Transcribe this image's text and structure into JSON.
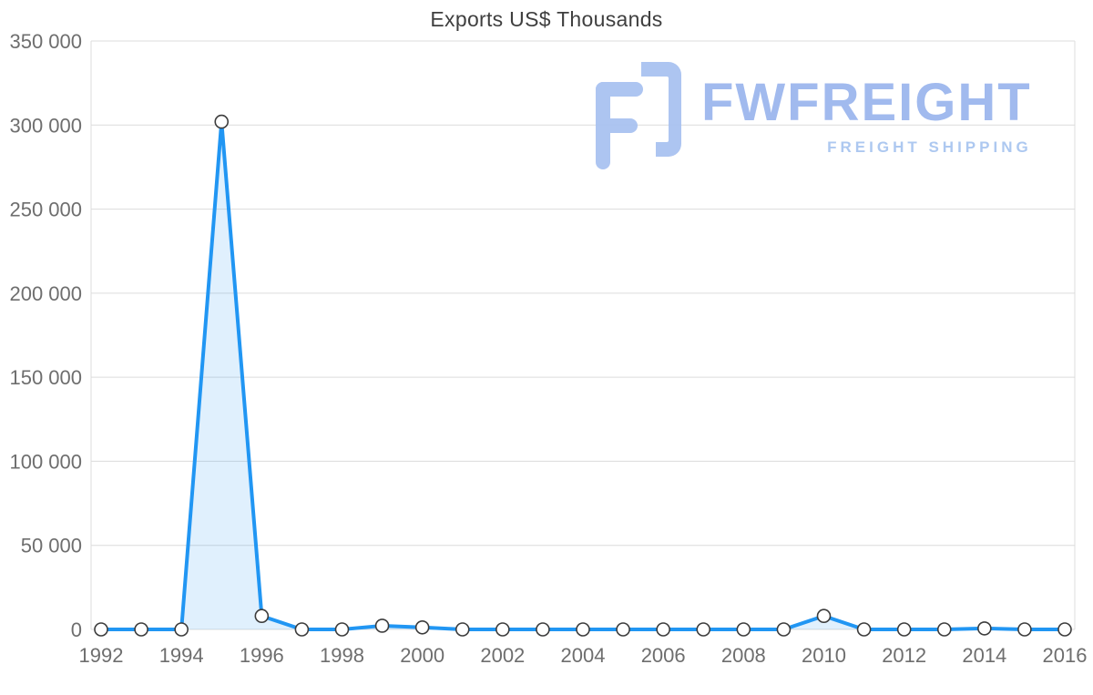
{
  "title": "Exports US$ Thousands",
  "watermark": {
    "brand": "FWFREIGHT",
    "tagline": "FREIGHT SHIPPING",
    "icon_color": "#a9c2f1",
    "brand_color": "#9db7ee",
    "tagline_color": "#a9c6f0"
  },
  "chart_data": {
    "type": "area",
    "title": "Exports US$ Thousands",
    "xlabel": "",
    "ylabel": "",
    "x": [
      1992,
      1993,
      1994,
      1995,
      1996,
      1997,
      1998,
      1999,
      2000,
      2001,
      2002,
      2003,
      2004,
      2005,
      2006,
      2007,
      2008,
      2009,
      2010,
      2011,
      2012,
      2013,
      2014,
      2015,
      2016
    ],
    "series": [
      {
        "name": "Exports US$ Thousands",
        "values": [
          0,
          0,
          0,
          302000,
          8000,
          0,
          0,
          2200,
          1200,
          0,
          0,
          0,
          0,
          0,
          0,
          0,
          0,
          0,
          8000,
          0,
          0,
          0,
          600,
          0,
          0
        ]
      }
    ],
    "xlim": [
      1992,
      2016
    ],
    "ylim": [
      0,
      350000
    ],
    "xticks": [
      "1992",
      "1994",
      "1996",
      "1998",
      "2000",
      "2002",
      "2004",
      "2006",
      "2008",
      "2010",
      "2012",
      "2014",
      "2016"
    ],
    "yticks": [
      {
        "value": 0,
        "label": "0"
      },
      {
        "value": 50000,
        "label": "50 000"
      },
      {
        "value": 100000,
        "label": "100 000"
      },
      {
        "value": 150000,
        "label": "150 000"
      },
      {
        "value": 200000,
        "label": "200 000"
      },
      {
        "value": 250000,
        "label": "250 000"
      },
      {
        "value": 300000,
        "label": "300 000"
      },
      {
        "value": 350000,
        "label": "350 000"
      }
    ],
    "grid": true,
    "legend": "none",
    "line_color": "#2196f3",
    "area_color": "rgba(33,150,243,0.14)",
    "grid_color": "#dcdcdc",
    "axis_text_color": "#6e6e6e",
    "marker_fill": "#ffffff",
    "marker_stroke": "#3c3c3c"
  }
}
